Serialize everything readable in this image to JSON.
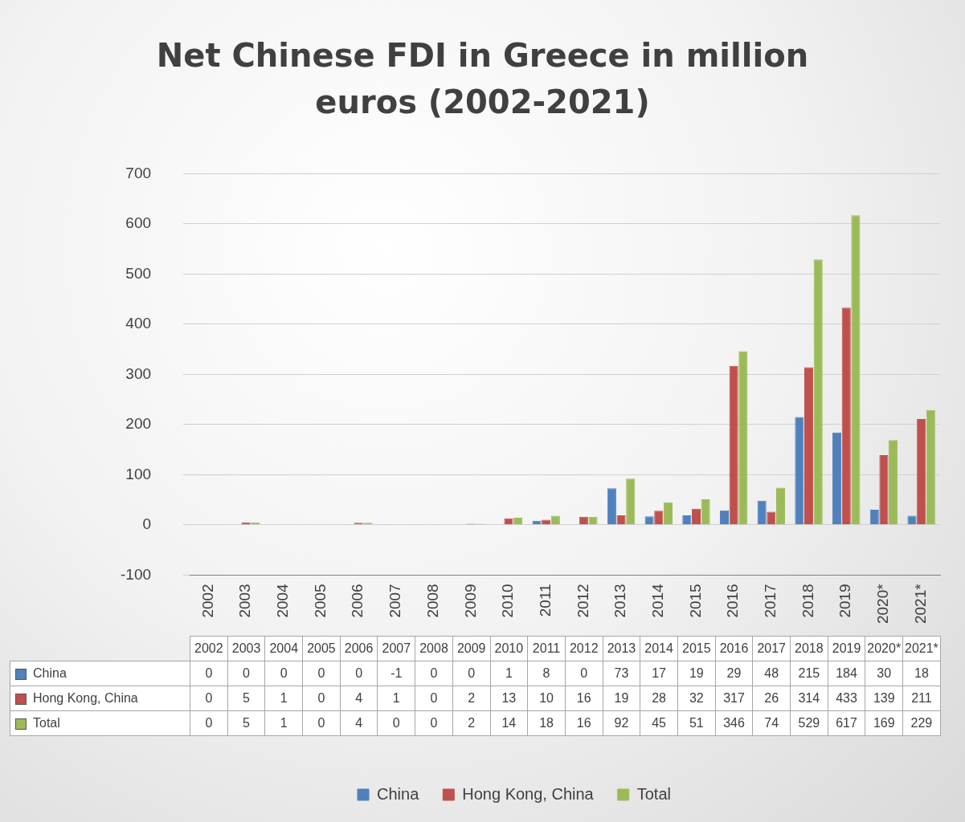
{
  "chart_data": {
    "type": "bar",
    "title": "Net Chinese FDI in Greece in million euros (2002-2021)",
    "categories": [
      "2002",
      "2003",
      "2004",
      "2005",
      "2006",
      "2007",
      "2008",
      "2009",
      "2010",
      "2011",
      "2012",
      "2013",
      "2014",
      "2015",
      "2016",
      "2017",
      "2018",
      "2019",
      "2020*",
      "2021*"
    ],
    "series": [
      {
        "name": "China",
        "color": "#4f81bd",
        "values": [
          0,
          0,
          0,
          0,
          0,
          -1,
          0,
          0,
          1,
          8,
          0,
          73,
          17,
          19,
          29,
          48,
          215,
          184,
          30,
          18
        ]
      },
      {
        "name": "Hong Kong, China",
        "color": "#c0504d",
        "values": [
          0,
          5,
          1,
          0,
          4,
          1,
          0,
          2,
          13,
          10,
          16,
          19,
          28,
          32,
          317,
          26,
          314,
          433,
          139,
          211
        ]
      },
      {
        "name": "Total",
        "color": "#9bbb59",
        "values": [
          0,
          5,
          1,
          0,
          4,
          0,
          0,
          2,
          14,
          18,
          16,
          92,
          45,
          51,
          346,
          74,
          529,
          617,
          169,
          229
        ]
      }
    ],
    "ylim": [
      -100,
      700
    ],
    "yticks": [
      -100,
      0,
      100,
      200,
      300,
      400,
      500,
      600,
      700
    ],
    "grid": "y",
    "legend": "bottom",
    "data_labels": true
  }
}
